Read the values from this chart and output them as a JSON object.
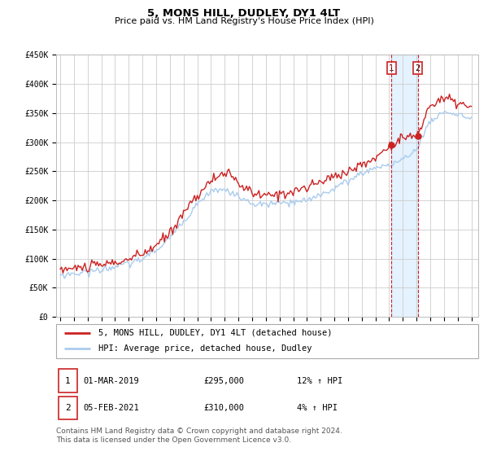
{
  "title": "5, MONS HILL, DUDLEY, DY1 4LT",
  "subtitle": "Price paid vs. HM Land Registry's House Price Index (HPI)",
  "ylim": [
    0,
    450000
  ],
  "yticks": [
    0,
    50000,
    100000,
    150000,
    200000,
    250000,
    300000,
    350000,
    400000,
    450000
  ],
  "ytick_labels": [
    "£0",
    "£50K",
    "£100K",
    "£150K",
    "£200K",
    "£250K",
    "£300K",
    "£350K",
    "£400K",
    "£450K"
  ],
  "xlim_start": 1994.7,
  "xlim_end": 2025.5,
  "xticks": [
    1995,
    1996,
    1997,
    1998,
    1999,
    2000,
    2001,
    2002,
    2003,
    2004,
    2005,
    2006,
    2007,
    2008,
    2009,
    2010,
    2011,
    2012,
    2013,
    2014,
    2015,
    2016,
    2017,
    2018,
    2019,
    2020,
    2021,
    2022,
    2023,
    2024,
    2025
  ],
  "background_color": "#ffffff",
  "grid_color": "#cccccc",
  "plot_bg_color": "#ffffff",
  "line1_color": "#cc2222",
  "line2_color": "#aaccee",
  "marker_color": "#cc2222",
  "sale1_x": 2019.167,
  "sale1_y": 295000,
  "sale2_x": 2021.083,
  "sale2_y": 310000,
  "vline1_x": 2019.167,
  "vline2_x": 2021.083,
  "shade_color": "#ddeeff",
  "legend_label1": "5, MONS HILL, DUDLEY, DY1 4LT (detached house)",
  "legend_label2": "HPI: Average price, detached house, Dudley",
  "annotation1_label": "1",
  "annotation2_label": "2",
  "table_row1": [
    "1",
    "01-MAR-2019",
    "£295,000",
    "12% ↑ HPI"
  ],
  "table_row2": [
    "2",
    "05-FEB-2021",
    "£310,000",
    "4% ↑ HPI"
  ],
  "footer": "Contains HM Land Registry data © Crown copyright and database right 2024.\nThis data is licensed under the Open Government Licence v3.0.",
  "title_fontsize": 9.5,
  "subtitle_fontsize": 8.0,
  "tick_fontsize": 7.0,
  "legend_fontsize": 7.5,
  "table_fontsize": 7.5,
  "footer_fontsize": 6.5
}
